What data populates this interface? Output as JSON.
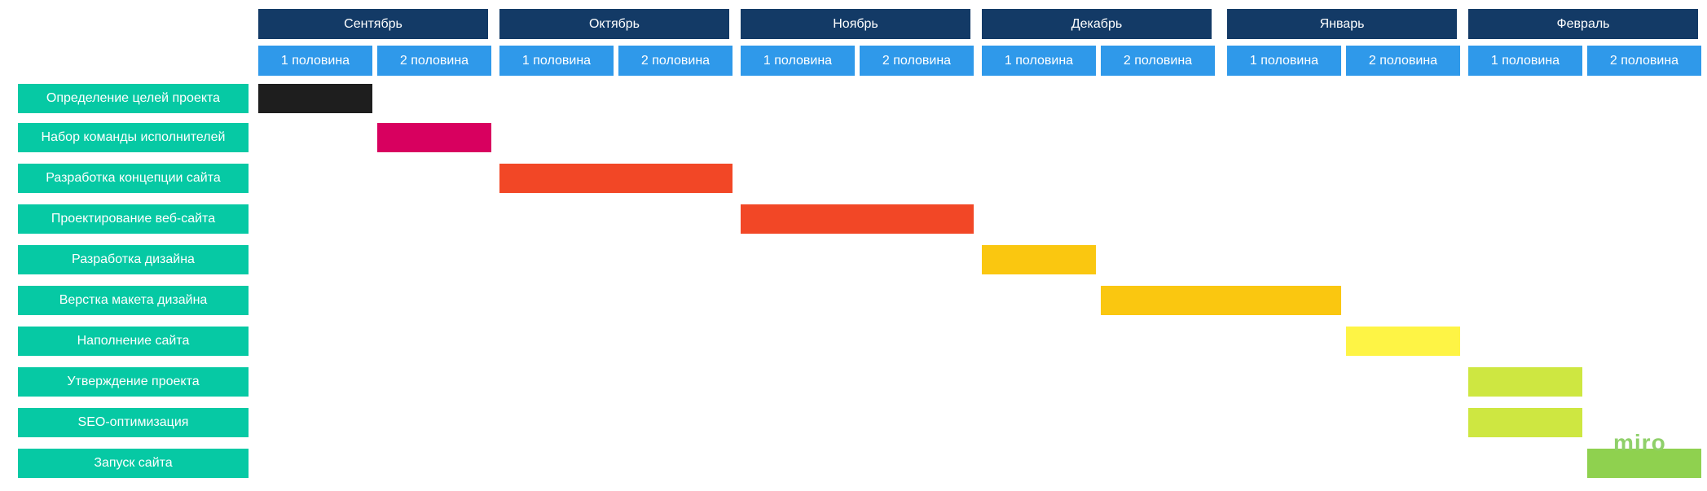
{
  "months": [
    {
      "label": "Сентябрь"
    },
    {
      "label": "Октябрь"
    },
    {
      "label": "Ноябрь"
    },
    {
      "label": "Декабрь"
    },
    {
      "label": "Январь"
    },
    {
      "label": "Февраль"
    }
  ],
  "halves": [
    "1 половина",
    "2 половина"
  ],
  "tasks": [
    {
      "label": "Определение целей проекта",
      "start": 0,
      "end": 1,
      "color": "#1e1e1e"
    },
    {
      "label": "Набор команды исполнителей",
      "start": 1,
      "end": 2,
      "color": "#d8005f"
    },
    {
      "label": "Разработка концепции сайта",
      "start": 2,
      "end": 4,
      "color": "#f24726"
    },
    {
      "label": "Проектирование веб-сайта",
      "start": 4,
      "end": 6,
      "color": "#f24726"
    },
    {
      "label": "Разработка дизайна",
      "start": 6,
      "end": 7,
      "color": "#fac710"
    },
    {
      "label": "Верстка макета дизайна",
      "start": 7,
      "end": 9,
      "color": "#fac710"
    },
    {
      "label": "Наполнение сайта",
      "start": 9,
      "end": 10,
      "color": "#fef445"
    },
    {
      "label": "Утверждение проекта",
      "start": 10,
      "end": 11,
      "color": "#cee741"
    },
    {
      "label": "SEO-оптимизация",
      "start": 10,
      "end": 11,
      "color": "#cee741"
    },
    {
      "label": "Запуск сайта",
      "start": 11,
      "end": 12,
      "color": "#8fd14f"
    }
  ],
  "watermark": "miro"
}
